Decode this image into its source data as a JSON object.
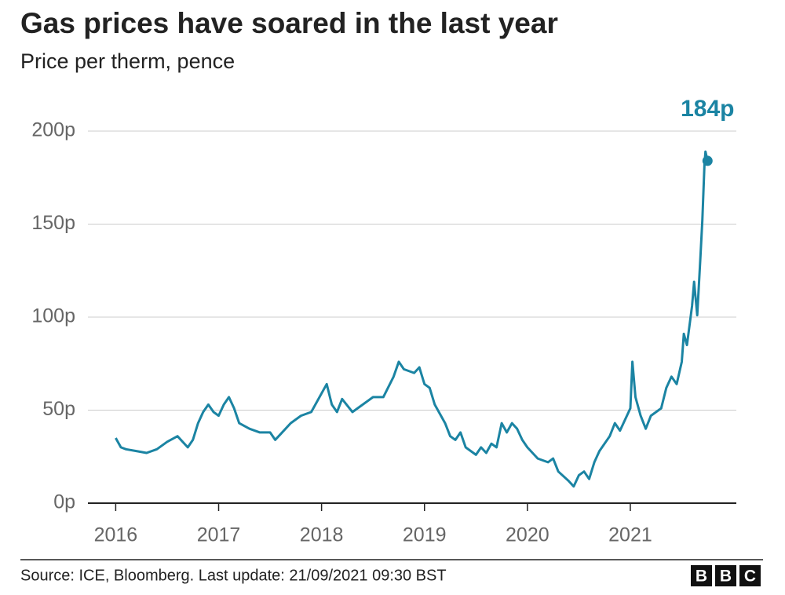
{
  "chart_data": {
    "type": "line",
    "title": "Gas prices have soared in the last year",
    "subtitle": "Price per therm, pence",
    "annotation": "184p",
    "source": "Source: ICE, Bloomberg. Last update: 21/09/2021 09:30 BST",
    "logo": [
      "B",
      "B",
      "C"
    ],
    "color": "#1b84a3",
    "x": [
      2016.0,
      2016.05,
      2016.1,
      2016.2,
      2016.3,
      2016.4,
      2016.5,
      2016.6,
      2016.7,
      2016.75,
      2016.8,
      2016.85,
      2016.9,
      2016.95,
      2017.0,
      2017.05,
      2017.1,
      2017.15,
      2017.2,
      2017.3,
      2017.4,
      2017.5,
      2017.55,
      2017.6,
      2017.7,
      2017.8,
      2017.9,
      2018.0,
      2018.05,
      2018.1,
      2018.15,
      2018.2,
      2018.3,
      2018.4,
      2018.5,
      2018.6,
      2018.7,
      2018.75,
      2018.8,
      2018.9,
      2018.95,
      2019.0,
      2019.05,
      2019.1,
      2019.2,
      2019.25,
      2019.3,
      2019.35,
      2019.4,
      2019.5,
      2019.55,
      2019.6,
      2019.65,
      2019.7,
      2019.75,
      2019.8,
      2019.85,
      2019.9,
      2019.95,
      2020.0,
      2020.1,
      2020.2,
      2020.25,
      2020.3,
      2020.4,
      2020.45,
      2020.5,
      2020.55,
      2020.6,
      2020.65,
      2020.7,
      2020.8,
      2020.85,
      2020.9,
      2021.0,
      2021.02,
      2021.05,
      2021.1,
      2021.15,
      2021.2,
      2021.3,
      2021.35,
      2021.4,
      2021.45,
      2021.5,
      2021.52,
      2021.55,
      2021.6,
      2021.62,
      2021.65,
      2021.68,
      2021.7,
      2021.72,
      2021.73,
      2021.75
    ],
    "values": [
      35,
      30,
      29,
      28,
      27,
      29,
      33,
      36,
      30,
      34,
      43,
      49,
      53,
      49,
      47,
      53,
      57,
      51,
      43,
      40,
      38,
      38,
      34,
      37,
      43,
      47,
      49,
      59,
      64,
      53,
      49,
      56,
      49,
      53,
      57,
      57,
      68,
      76,
      72,
      70,
      73,
      64,
      62,
      53,
      43,
      36,
      34,
      38,
      30,
      26,
      30,
      27,
      32,
      30,
      43,
      38,
      43,
      40,
      34,
      30,
      24,
      22,
      24,
      17,
      12,
      9,
      15,
      17,
      13,
      22,
      28,
      36,
      43,
      39,
      51,
      76,
      57,
      47,
      40,
      47,
      51,
      62,
      68,
      64,
      76,
      91,
      85,
      106,
      119,
      101,
      131,
      152,
      182,
      189,
      184
    ],
    "xlim": [
      2015.73,
      2022.03
    ],
    "xticks": [
      2016,
      2017,
      2018,
      2019,
      2020,
      2021
    ],
    "ylim": [
      0,
      200
    ],
    "yticks": [
      {
        "value": 0,
        "label": "0p"
      },
      {
        "value": 50,
        "label": "50p"
      },
      {
        "value": 100,
        "label": "100p"
      },
      {
        "value": 150,
        "label": "150p"
      },
      {
        "value": 200,
        "label": "200p"
      }
    ],
    "grid": true
  }
}
